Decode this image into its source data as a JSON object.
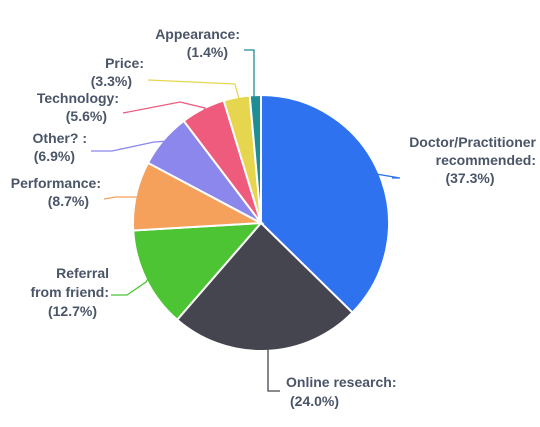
{
  "chart_data": {
    "type": "pie",
    "title": "",
    "slices": [
      {
        "name": "Doctor/Practitioner recommended:",
        "lines": [
          "Doctor/Practitioner",
          "recommended:"
        ],
        "value": 37.3,
        "value_label": "(37.3%)",
        "color": "#2f72ef"
      },
      {
        "name": "Online research:",
        "lines": [
          "Online research:"
        ],
        "value": 24.0,
        "value_label": "(24.0%)",
        "color": "#45454f"
      },
      {
        "name": "Referral from friend:",
        "lines": [
          "Referral",
          "from friend:"
        ],
        "value": 12.7,
        "value_label": "(12.7%)",
        "color": "#4cc434"
      },
      {
        "name": "Performance:",
        "lines": [
          "Performance:"
        ],
        "value": 8.7,
        "value_label": "(8.7%)",
        "color": "#f5a15c"
      },
      {
        "name": "Other? :",
        "lines": [
          "Other? :"
        ],
        "value": 6.9,
        "value_label": "(6.9%)",
        "color": "#8b87ec"
      },
      {
        "name": "Technology:",
        "lines": [
          "Technology:"
        ],
        "value": 5.6,
        "value_label": "(5.6%)",
        "color": "#ef5b7c"
      },
      {
        "name": "Price:",
        "lines": [
          "Price:"
        ],
        "value": 3.3,
        "value_label": "(3.3%)",
        "color": "#e6d64f"
      },
      {
        "name": "Appearance:",
        "lines": [
          "Appearance:"
        ],
        "value": 1.4,
        "value_label": "(1.4%)",
        "color": "#1f8d94"
      }
    ]
  }
}
